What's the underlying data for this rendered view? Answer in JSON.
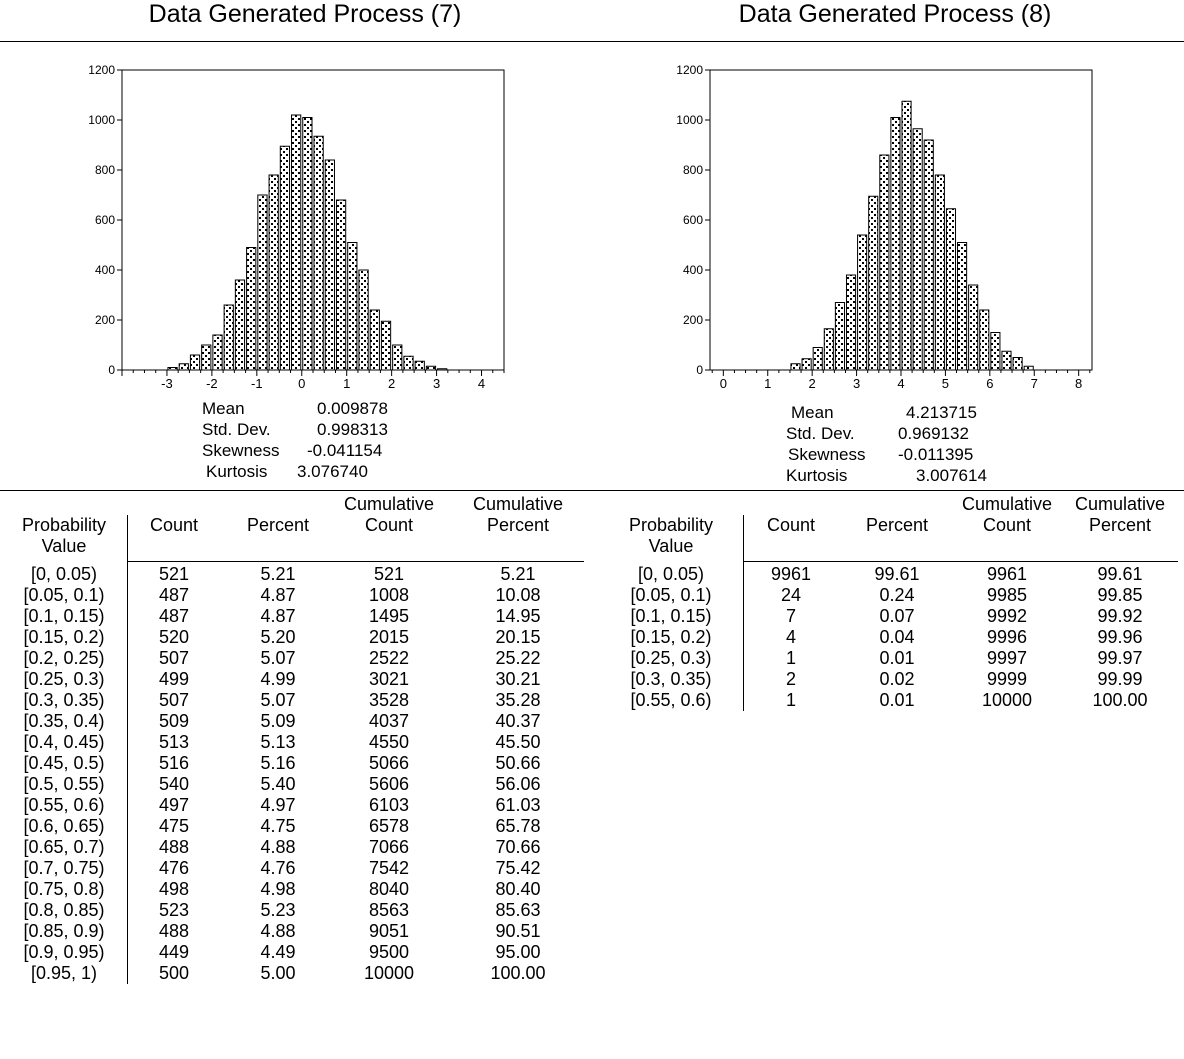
{
  "panels": [
    {
      "title": "Data Generated Process (7)",
      "stats": [
        {
          "label": "Mean",
          "value": "0.009878"
        },
        {
          "label": "Std. Dev.",
          "value": "0.998313"
        },
        {
          "label": "Skewness",
          "value": "-0.041154"
        },
        {
          "label": "Kurtosis",
          "value": "3.076740"
        }
      ],
      "table": {
        "headers": {
          "prob_top": "",
          "prob_bottom": "Probability Value",
          "count": "Count",
          "percent": "Percent",
          "cumcount_top": "Cumulative",
          "cumcount": "Count",
          "cumpercent_top": "Cumulative",
          "cumpercent": "Percent"
        },
        "rows": [
          [
            "[0, 0.05)",
            "521",
            "5.21",
            "521",
            "5.21"
          ],
          [
            "[0.05, 0.1)",
            "487",
            "4.87",
            "1008",
            "10.08"
          ],
          [
            "[0.1, 0.15)",
            "487",
            "4.87",
            "1495",
            "14.95"
          ],
          [
            "[0.15, 0.2)",
            "520",
            "5.20",
            "2015",
            "20.15"
          ],
          [
            "[0.2, 0.25)",
            "507",
            "5.07",
            "2522",
            "25.22"
          ],
          [
            "[0.25, 0.3)",
            "499",
            "4.99",
            "3021",
            "30.21"
          ],
          [
            "[0.3, 0.35)",
            "507",
            "5.07",
            "3528",
            "35.28"
          ],
          [
            "[0.35, 0.4)",
            "509",
            "5.09",
            "4037",
            "40.37"
          ],
          [
            "[0.4, 0.45)",
            "513",
            "5.13",
            "4550",
            "45.50"
          ],
          [
            "[0.45, 0.5)",
            "516",
            "5.16",
            "5066",
            "50.66"
          ],
          [
            "[0.5, 0.55)",
            "540",
            "5.40",
            "5606",
            "56.06"
          ],
          [
            "[0.55, 0.6)",
            "497",
            "4.97",
            "6103",
            "61.03"
          ],
          [
            "[0.6, 0.65)",
            "475",
            "4.75",
            "6578",
            "65.78"
          ],
          [
            "[0.65, 0.7)",
            "488",
            "4.88",
            "7066",
            "70.66"
          ],
          [
            "[0.7, 0.75)",
            "476",
            "4.76",
            "7542",
            "75.42"
          ],
          [
            "[0.75, 0.8)",
            "498",
            "4.98",
            "8040",
            "80.40"
          ],
          [
            "[0.8, 0.85)",
            "523",
            "5.23",
            "8563",
            "85.63"
          ],
          [
            "[0.85, 0.9)",
            "488",
            "4.88",
            "9051",
            "90.51"
          ],
          [
            "[0.9, 0.95)",
            "449",
            "4.49",
            "9500",
            "95.00"
          ],
          [
            "[0.95, 1)",
            "500",
            "5.00",
            "10000",
            "100.00"
          ]
        ]
      }
    },
    {
      "title": "Data Generated Process (8)",
      "stats": [
        {
          "label": "Mean",
          "value": "4.213715"
        },
        {
          "label": "Std. Dev.",
          "value": "0.969132"
        },
        {
          "label": "Skewness",
          "value": "-0.011395"
        },
        {
          "label": "Kurtosis",
          "value": "3.007614"
        }
      ],
      "table": {
        "headers": {
          "prob_top": "",
          "prob_bottom": "Probability Value",
          "count": "Count",
          "percent": "Percent",
          "cumcount_top": "Cumulative",
          "cumcount": "Count",
          "cumpercent_top": "Cumulative",
          "cumpercent": "Percent"
        },
        "rows": [
          [
            "[0, 0.05)",
            "9961",
            "99.61",
            "9961",
            "99.61"
          ],
          [
            "[0.05, 0.1)",
            "24",
            "0.24",
            "9985",
            "99.85"
          ],
          [
            "[0.1, 0.15)",
            "7",
            "0.07",
            "9992",
            "99.92"
          ],
          [
            "[0.15, 0.2)",
            "4",
            "0.04",
            "9996",
            "99.96"
          ],
          [
            "[0.25, 0.3)",
            "1",
            "0.01",
            "9997",
            "99.97"
          ],
          [
            "[0.3, 0.35)",
            "2",
            "0.02",
            "9999",
            "99.99"
          ],
          [
            "[0.55, 0.6)",
            "1",
            "0.01",
            "10000",
            "100.00"
          ]
        ]
      }
    }
  ],
  "chart_data": [
    {
      "type": "bar",
      "title": "Data Generated Process (7)",
      "xlabel": "",
      "ylabel": "",
      "xlim": [
        -4,
        4.5
      ],
      "ylim": [
        0,
        1200
      ],
      "xticks": [
        -3,
        -2,
        -1,
        0,
        1,
        2,
        3,
        4
      ],
      "yticks": [
        0,
        200,
        400,
        600,
        800,
        1000,
        1200
      ],
      "bin_width": 0.25,
      "bins_start": [
        -3.0,
        -2.75,
        -2.5,
        -2.25,
        -2.0,
        -1.75,
        -1.5,
        -1.25,
        -1.0,
        -0.75,
        -0.5,
        -0.25,
        0.0,
        0.25,
        0.5,
        0.75,
        1.0,
        1.25,
        1.5,
        1.75,
        2.0,
        2.25,
        2.5,
        2.75,
        3.0
      ],
      "values": [
        10,
        25,
        60,
        100,
        140,
        260,
        360,
        490,
        700,
        780,
        895,
        1020,
        1010,
        935,
        840,
        680,
        510,
        400,
        240,
        195,
        100,
        55,
        35,
        15,
        5
      ],
      "grid": false
    },
    {
      "type": "bar",
      "title": "Data Generated Process (8)",
      "xlabel": "",
      "ylabel": "",
      "xlim": [
        -0.3,
        8.3
      ],
      "ylim": [
        0,
        1200
      ],
      "xticks": [
        0,
        1,
        2,
        3,
        4,
        5,
        6,
        7,
        8
      ],
      "yticks": [
        0,
        200,
        400,
        600,
        800,
        1000,
        1200
      ],
      "bin_width": 0.25,
      "bins_start": [
        1.5,
        1.75,
        2.0,
        2.25,
        2.5,
        2.75,
        3.0,
        3.25,
        3.5,
        3.75,
        4.0,
        4.25,
        4.5,
        4.75,
        5.0,
        5.25,
        5.5,
        5.75,
        6.0,
        6.25,
        6.5,
        6.75
      ],
      "values": [
        25,
        45,
        90,
        165,
        270,
        380,
        540,
        695,
        860,
        1010,
        1075,
        965,
        920,
        780,
        645,
        510,
        340,
        240,
        150,
        75,
        50,
        15
      ],
      "grid": false
    }
  ]
}
